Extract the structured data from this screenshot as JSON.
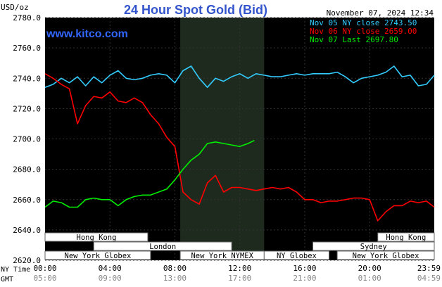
{
  "header": {
    "y_unit": "USD/oz",
    "title": "24 Hour Spot Gold (Bid)",
    "timestamp": "November 07, 2024 12:34",
    "watermark": "www.kitco.com"
  },
  "legend": [
    {
      "label": "Nov 05 NY close 2743.50",
      "color": "#33ccff"
    },
    {
      "label": "Nov 06 NY close 2659.00",
      "color": "#ff0000"
    },
    {
      "label": "Nov 07 Last 2697.80",
      "color": "#00ee00"
    }
  ],
  "sessions": [
    {
      "label": "Hong Kong",
      "start": 0.0,
      "end": 6.33,
      "row": 0
    },
    {
      "label": "Hong Kong",
      "start": 20.5,
      "end": 23.98,
      "row": 0
    },
    {
      "label": "London",
      "start": 3.0,
      "end": 11.5,
      "row": 1
    },
    {
      "label": "Sydney",
      "start": 16.5,
      "end": 23.98,
      "row": 1
    },
    {
      "label": "New York Globex",
      "start": 0.0,
      "end": 6.5,
      "row": 2
    },
    {
      "label": "New York NYMEX",
      "start": 8.33,
      "end": 13.5,
      "row": 2
    },
    {
      "label": "NY Globex",
      "start": 13.5,
      "end": 17.5,
      "row": 2
    },
    {
      "label": "New York Globex",
      "start": 18.0,
      "end": 23.98,
      "row": 2
    }
  ],
  "axis_labels": {
    "ny_time": "NY Time",
    "gmt": "GMT"
  },
  "gmt_ticks": [
    "05:00",
    "09:00",
    "13:00",
    "17:00",
    "21:00",
    "01:00",
    "04:59"
  ],
  "chart_data": {
    "type": "line",
    "ylim": [
      2620,
      2780
    ],
    "yticks": [
      "2620.0",
      "2640.0",
      "2660.0",
      "2680.0",
      "2700.0",
      "2720.0",
      "2740.0",
      "2760.0",
      "2780.0"
    ],
    "xlim": [
      0,
      23.98
    ],
    "xticks": [
      "00:00",
      "04:00",
      "08:00",
      "12:00",
      "16:00",
      "20:00",
      "23:59"
    ],
    "nymex_session": [
      8.33,
      13.5
    ],
    "series": [
      {
        "name": "Nov 05 NY close 2743.50",
        "color": "#33ccff",
        "x": [
          0,
          0.5,
          1.0,
          1.5,
          2.0,
          2.5,
          3.0,
          3.5,
          4.0,
          4.5,
          5.0,
          5.5,
          6.0,
          6.5,
          7.0,
          7.5,
          8.0,
          8.5,
          9.0,
          9.5,
          10.0,
          10.5,
          11.0,
          11.5,
          12.0,
          12.5,
          13.0,
          13.5,
          14.0,
          14.5,
          15.0,
          15.5,
          16.0,
          16.5,
          17.0,
          17.5,
          18.0,
          18.5,
          19.0,
          19.5,
          20.0,
          20.5,
          21.0,
          21.5,
          22.0,
          22.5,
          23.0,
          23.5,
          23.98
        ],
        "y": [
          2734,
          2736,
          2740,
          2737,
          2741,
          2735,
          2741,
          2737,
          2742,
          2745,
          2740,
          2739,
          2740,
          2742,
          2743,
          2742,
          2737,
          2745,
          2748,
          2740,
          2734,
          2740,
          2738,
          2741,
          2743,
          2740,
          2743,
          2742,
          2741,
          2741,
          2742,
          2743,
          2742,
          2743,
          2743,
          2743,
          2744,
          2741,
          2737,
          2740,
          2741,
          2742,
          2744,
          2748,
          2741,
          2742,
          2735,
          2736,
          2742
        ]
      },
      {
        "name": "Nov 06 NY close 2659.00",
        "color": "#ff0000",
        "x": [
          0,
          0.5,
          1.0,
          1.5,
          2.0,
          2.5,
          3.0,
          3.5,
          4.0,
          4.5,
          5.0,
          5.5,
          6.0,
          6.5,
          7.0,
          7.5,
          8.0,
          8.5,
          9.0,
          9.5,
          10.0,
          10.5,
          11.0,
          11.5,
          12.0,
          12.5,
          13.0,
          13.5,
          14.0,
          14.5,
          15.0,
          15.5,
          16.0,
          16.5,
          17.0,
          17.5,
          18.0,
          18.5,
          19.0,
          19.5,
          20.0,
          20.5,
          21.0,
          21.5,
          22.0,
          22.5,
          23.0,
          23.5,
          23.98
        ],
        "y": [
          2743,
          2740,
          2736,
          2733,
          2710,
          2722,
          2728,
          2727,
          2731,
          2725,
          2724,
          2727,
          2724,
          2716,
          2710,
          2701,
          2695,
          2665,
          2660,
          2657,
          2671,
          2676,
          2665,
          2668,
          2668,
          2667,
          2666,
          2667,
          2668,
          2667,
          2668,
          2665,
          2660,
          2660,
          2658,
          2659,
          2659,
          2660,
          2661,
          2661,
          2660,
          2646,
          2652,
          2656,
          2656,
          2659,
          2658,
          2659,
          2655
        ]
      },
      {
        "name": "Nov 07 Last 2697.80",
        "color": "#00ee00",
        "x": [
          0,
          0.5,
          1.0,
          1.5,
          2.0,
          2.5,
          3.0,
          3.5,
          4.0,
          4.5,
          5.0,
          5.5,
          6.0,
          6.5,
          7.0,
          7.5,
          8.0,
          8.5,
          9.0,
          9.5,
          10.0,
          10.5,
          11.0,
          11.5,
          12.0,
          12.5,
          12.9
        ],
        "y": [
          2655,
          2659,
          2658,
          2655,
          2655,
          2660,
          2661,
          2660,
          2660,
          2656,
          2660,
          2662,
          2663,
          2663,
          2665,
          2667,
          2673,
          2680,
          2686,
          2690,
          2697,
          2698,
          2697,
          2696,
          2695,
          2697,
          2699
        ]
      }
    ]
  }
}
